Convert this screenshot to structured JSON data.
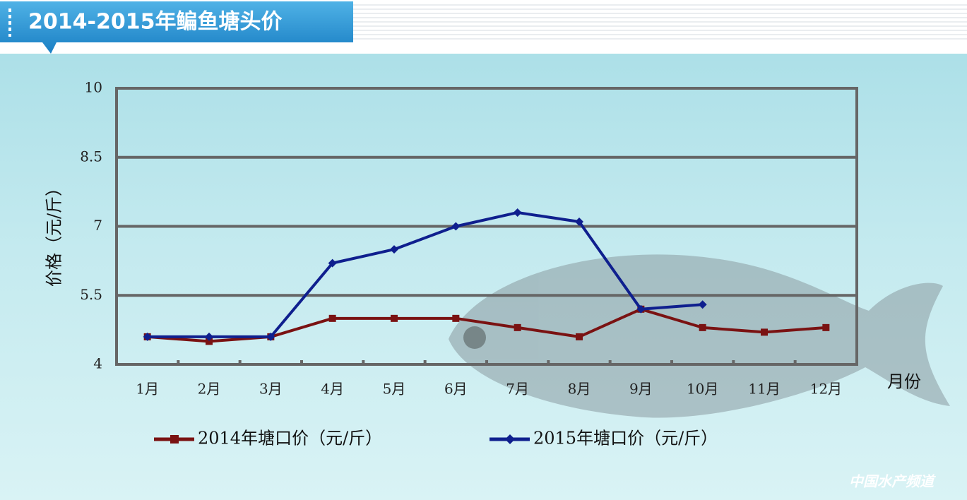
{
  "chart_data": {
    "type": "line",
    "title": "2014-2015年鳊鱼塘头价",
    "y_label": "价格（元/斤）",
    "x_label": "月份",
    "watermark": "中国水产频道",
    "categories": [
      "1月",
      "2月",
      "3月",
      "4月",
      "5月",
      "6月",
      "7月",
      "8月",
      "9月",
      "10月",
      "11月",
      "12月"
    ],
    "series": [
      {
        "name": "2014年塘口价（元/斤）",
        "color": "#7a1212",
        "marker": "square",
        "values": [
          4.6,
          4.5,
          4.6,
          5.0,
          5.0,
          5.0,
          4.8,
          4.6,
          5.2,
          4.8,
          4.7,
          4.8
        ]
      },
      {
        "name": "2015年塘口价（元/斤）",
        "color": "#0f1f8e",
        "marker": "diamond",
        "values": [
          4.6,
          4.6,
          4.6,
          6.2,
          6.5,
          7.0,
          7.3,
          7.1,
          5.2,
          5.3,
          null,
          null
        ]
      }
    ],
    "ylim": [
      4,
      10
    ],
    "yticks": [
      4,
      5.5,
      7,
      8.5,
      10
    ],
    "grid": true
  }
}
